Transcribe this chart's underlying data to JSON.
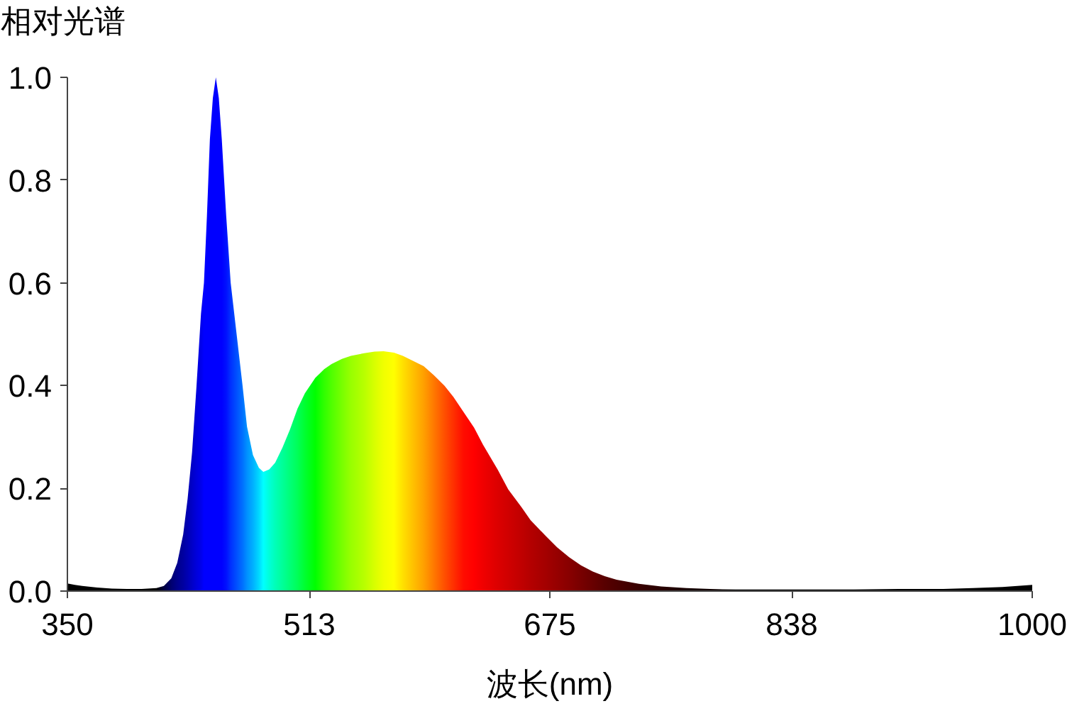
{
  "chart_data": {
    "type": "area",
    "ylabel": "相对光谱",
    "xlabel": "波长(nm)",
    "x": [
      350,
      355,
      360,
      370,
      380,
      390,
      400,
      410,
      415,
      420,
      424,
      428,
      431,
      434,
      437,
      440,
      442,
      444,
      446,
      448,
      450,
      452,
      454,
      457,
      460,
      464,
      468,
      471,
      475,
      479,
      482,
      486,
      490,
      495,
      500,
      505,
      510,
      517,
      523,
      528,
      535,
      541,
      550,
      557,
      563,
      570,
      576,
      583,
      590,
      597,
      604,
      610,
      617,
      624,
      630,
      640,
      647,
      656,
      662,
      672,
      680,
      688,
      696,
      704,
      712,
      720,
      735,
      750,
      767,
      783,
      800,
      820,
      850,
      880,
      910,
      940,
      960,
      980,
      1000
    ],
    "series": [
      {
        "values": [
          0.015,
          0.012,
          0.01,
          0.007,
          0.005,
          0.004,
          0.004,
          0.006,
          0.01,
          0.025,
          0.055,
          0.11,
          0.18,
          0.27,
          0.4,
          0.54,
          0.6,
          0.73,
          0.88,
          0.96,
          1.0,
          0.96,
          0.88,
          0.73,
          0.6,
          0.5,
          0.4,
          0.32,
          0.265,
          0.24,
          0.232,
          0.237,
          0.25,
          0.28,
          0.315,
          0.355,
          0.385,
          0.415,
          0.432,
          0.442,
          0.452,
          0.458,
          0.463,
          0.466,
          0.467,
          0.464,
          0.458,
          0.448,
          0.438,
          0.42,
          0.4,
          0.378,
          0.348,
          0.318,
          0.285,
          0.236,
          0.198,
          0.163,
          0.138,
          0.108,
          0.085,
          0.066,
          0.05,
          0.038,
          0.029,
          0.022,
          0.014,
          0.009,
          0.006,
          0.004,
          0.003,
          0.003,
          0.003,
          0.003,
          0.004,
          0.004,
          0.006,
          0.008,
          0.012
        ],
        "colors": [
          "#000000",
          "#000000",
          "#000000",
          "#000000",
          "#000000",
          "#000000",
          "#000000",
          "#000000",
          "#000040",
          "#000070",
          "#00008c",
          "#0000a0",
          "#0000b4",
          "#0000c8",
          "#0000dc",
          "#0000eb",
          "#0000ff",
          "#0000ff",
          "#0000ff",
          "#0000ff",
          "#0000ff",
          "#0000ff",
          "#0000ff",
          "#0010ff",
          "#0030ff",
          "#0050ff",
          "#0070ff",
          "#0090ff",
          "#00b0ff",
          "#00d8ff",
          "#00ffff",
          "#00ffd8",
          "#00ffb8",
          "#00ff98",
          "#00ff78",
          "#00ff58",
          "#00ff30",
          "#00ff00",
          "#30ff00",
          "#50ff00",
          "#78ff00",
          "#98ff00",
          "#b8ff00",
          "#d8ff00",
          "#f0ff00",
          "#ffff00",
          "#ffe000",
          "#ffc000",
          "#ffa000",
          "#ff7800",
          "#ff5000",
          "#ff3000",
          "#ff0c00",
          "#ff0000",
          "#f00000",
          "#dc0000",
          "#d00000",
          "#c00000",
          "#b40000",
          "#a40000",
          "#960000",
          "#880000",
          "#780000",
          "#680000",
          "#580000",
          "#4c0000",
          "#380000",
          "#280000",
          "#180000",
          "#100000",
          "#000000",
          "#000000",
          "#000000",
          "#000000",
          "#000000",
          "#000000",
          "#000000",
          "#000000",
          "#000000"
        ]
      }
    ],
    "xlim": [
      350,
      1000
    ],
    "ylim": [
      0,
      1
    ],
    "xticks": [
      350,
      513,
      675,
      838,
      1000
    ],
    "yticks": [
      {
        "value": 0,
        "label": "0.0"
      },
      0.2,
      0.4,
      0.6,
      0.8,
      {
        "value": 1,
        "label": "1.0"
      }
    ],
    "grid": false
  }
}
